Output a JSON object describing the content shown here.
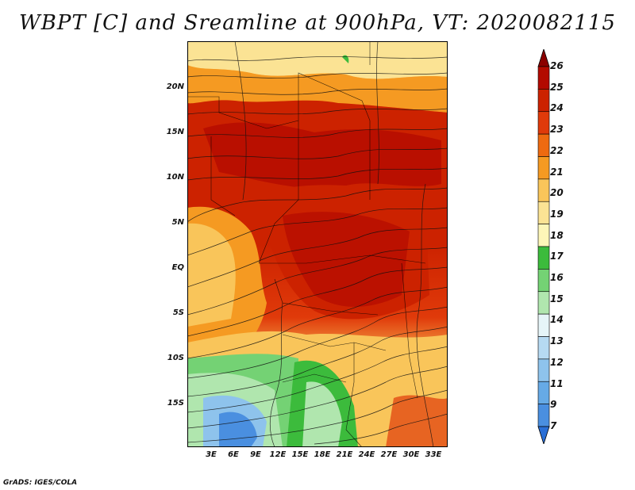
{
  "title": "WBPT [C] and Sreamline at 900hPa, VT: 2020082115",
  "map": {
    "lat_labels": [
      "20N",
      "15N",
      "10N",
      "5N",
      "EQ",
      "5S",
      "10S",
      "15S"
    ],
    "lon_labels": [
      "3E",
      "6E",
      "9E",
      "12E",
      "15E",
      "18E",
      "21E",
      "24E",
      "27E",
      "30E",
      "33E"
    ]
  },
  "colorbar": {
    "labels": [
      "26",
      "25",
      "24",
      "23",
      "22",
      "21",
      "20",
      "19",
      "18",
      "17",
      "16",
      "15",
      "14",
      "13",
      "12",
      "11",
      "9",
      "7"
    ],
    "colors": [
      "#8b0000",
      "#b30a00",
      "#cc2200",
      "#e03a0a",
      "#ee6a10",
      "#f59a22",
      "#f9c55a",
      "#fbe394",
      "#fdf6b8",
      "#3cbb3c",
      "#74d274",
      "#b0e6ae",
      "#e6f5f8",
      "#b6daf2",
      "#8ec3ec",
      "#66aae6",
      "#4a8fe0",
      "#2a6fd6"
    ]
  },
  "footer": "GrADS: IGES/COLA"
}
